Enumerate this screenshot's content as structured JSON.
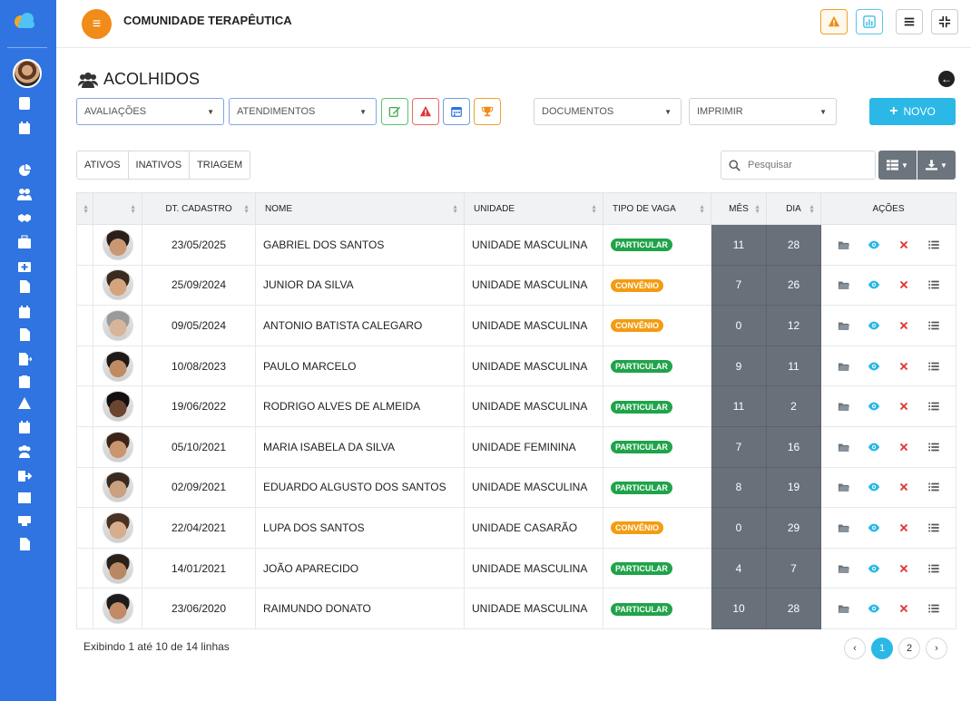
{
  "app": {
    "title": "COMUNIDADE TERAPÊUTICA"
  },
  "colors": {
    "sidebar": "#2f74e0",
    "accent_orange": "#f08c17",
    "accent_cyan": "#2bb8e6",
    "particular": "#20a34a",
    "convenio": "#f39c12",
    "danger": "#e03535",
    "dark_col": "#68707a"
  },
  "sidebar": {
    "items": [
      "cloud-logo-icon",
      "user-card-icon",
      "calendar-icon",
      "pie-chart-icon",
      "users-icon",
      "handshake-icon",
      "medkit-icon",
      "medkit-plus-icon",
      "file-icon",
      "calendar-check-icon",
      "file-lines-icon",
      "file-export-icon",
      "clipboard-icon",
      "warning-icon",
      "calendar-day-icon",
      "group-icon",
      "sign-out-icon",
      "table-icon",
      "cash-icon",
      "document-icon"
    ]
  },
  "topbar": {
    "buttons": [
      "warning-icon",
      "chart-icon",
      "bars-icon",
      "compress-icon"
    ]
  },
  "page": {
    "title": "ACOLHIDOS"
  },
  "filters": {
    "avaliacoes": "AVALIAÇÕES",
    "atendimentos": "ATENDIMENTOS",
    "documentos": "DOCUMENTOS",
    "imprimir": "IMPRIMIR",
    "novo": "NOVO"
  },
  "tabs": [
    "ATIVOS",
    "INATIVOS",
    "TRIAGEM"
  ],
  "search": {
    "placeholder": "Pesquisar"
  },
  "table": {
    "headers": {
      "cadastro": "DT. CADASTRO",
      "nome": "NOME",
      "unidade": "UNIDADE",
      "vaga": "TIPO DE VAGA",
      "mes": "MÊS",
      "dia": "DIA",
      "acoes": "AÇÕES"
    },
    "rows": [
      {
        "date": "23/05/2025",
        "name": "GABRIEL DOS SANTOS",
        "unit": "UNIDADE MASCULINA",
        "vaga": "PARTICULAR",
        "mes": "11",
        "dia": "28"
      },
      {
        "date": "25/09/2024",
        "name": "JUNIOR DA SILVA",
        "unit": "UNIDADE MASCULINA",
        "vaga": "CONVÊNIO",
        "mes": "7",
        "dia": "26"
      },
      {
        "date": "09/05/2024",
        "name": "ANTONIO BATISTA CALEGARO",
        "unit": "UNIDADE MASCULINA",
        "vaga": "CONVÊNIO",
        "mes": "0",
        "dia": "12"
      },
      {
        "date": "10/08/2023",
        "name": "PAULO MARCELO",
        "unit": "UNIDADE MASCULINA",
        "vaga": "PARTICULAR",
        "mes": "9",
        "dia": "11"
      },
      {
        "date": "19/06/2022",
        "name": "RODRIGO ALVES DE ALMEIDA",
        "unit": "UNIDADE MASCULINA",
        "vaga": "PARTICULAR",
        "mes": "11",
        "dia": "2"
      },
      {
        "date": "05/10/2021",
        "name": "MARIA ISABELA DA SILVA",
        "unit": "UNIDADE FEMININA",
        "vaga": "PARTICULAR",
        "mes": "7",
        "dia": "16"
      },
      {
        "date": "02/09/2021",
        "name": "EDUARDO ALGUSTO DOS SANTOS",
        "unit": "UNIDADE MASCULINA",
        "vaga": "PARTICULAR",
        "mes": "8",
        "dia": "19"
      },
      {
        "date": "22/04/2021",
        "name": "LUPA DOS SANTOS",
        "unit": "UNIDADE CASARÃO",
        "vaga": "CONVÊNIO",
        "mes": "0",
        "dia": "29"
      },
      {
        "date": "14/01/2021",
        "name": "JOÃO APARECIDO",
        "unit": "UNIDADE MASCULINA",
        "vaga": "PARTICULAR",
        "mes": "4",
        "dia": "7"
      },
      {
        "date": "23/06/2020",
        "name": "RAIMUNDO DONATO",
        "unit": "UNIDADE MASCULINA",
        "vaga": "PARTICULAR",
        "mes": "10",
        "dia": "28"
      }
    ]
  },
  "footer": {
    "info": "Exibindo 1 até 10 de 14 linhas",
    "pages": [
      "1",
      "2"
    ],
    "active_page": "1"
  }
}
